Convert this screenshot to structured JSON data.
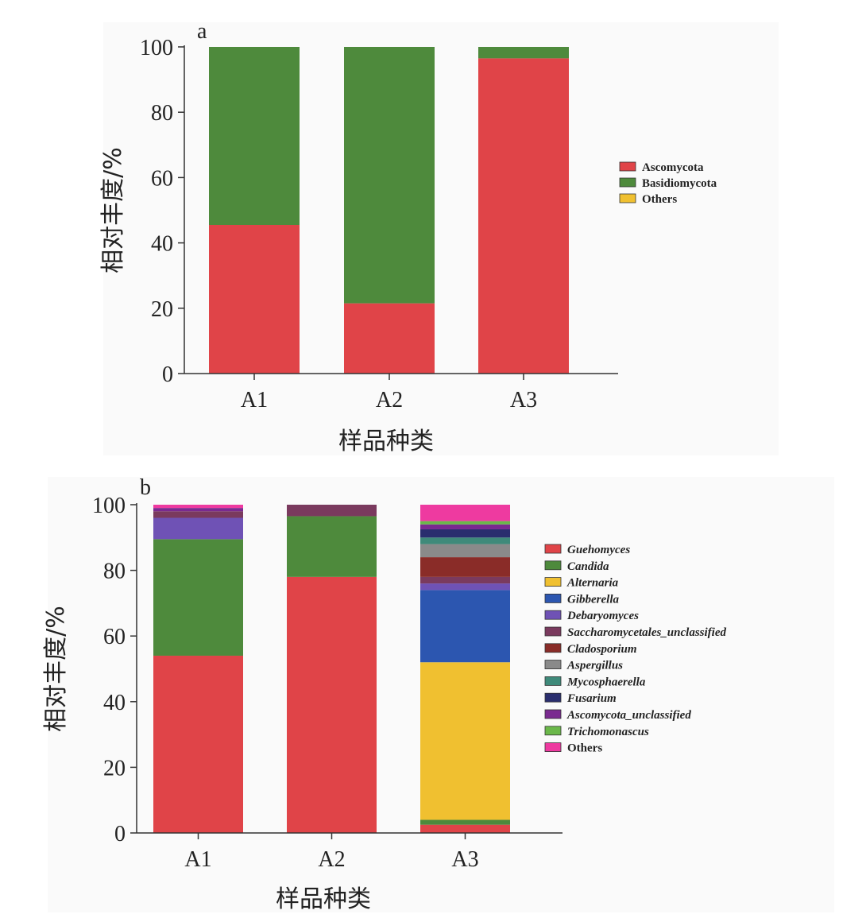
{
  "chart_data": [
    {
      "panel_label": "a",
      "type": "bar",
      "stacked": true,
      "categories": [
        "A1",
        "A2",
        "A3"
      ],
      "xlabel": "样品种类",
      "ylabel": "相对丰度/%",
      "ylim": [
        0,
        100
      ],
      "yticks": [
        0,
        20,
        40,
        60,
        80,
        100
      ],
      "series": [
        {
          "name": "Ascomycota",
          "color": "#e04448",
          "values": [
            45.5,
            21.5,
            96.5
          ]
        },
        {
          "name": "Basidiomycota",
          "color": "#4e8a3c",
          "values": [
            54.5,
            78.5,
            3.5
          ]
        },
        {
          "name": "Others",
          "color": "#f0c030",
          "values": [
            0,
            0,
            0
          ]
        }
      ],
      "legend_position": "right"
    },
    {
      "panel_label": "b",
      "type": "bar",
      "stacked": true,
      "categories": [
        "A1",
        "A2",
        "A3"
      ],
      "xlabel": "样品种类",
      "ylabel": "相对丰度/%",
      "ylim": [
        0,
        100
      ],
      "yticks": [
        0,
        20,
        40,
        60,
        80,
        100
      ],
      "series": [
        {
          "name": "Guehomyces",
          "color": "#e04448",
          "values": [
            54,
            78,
            2.5
          ]
        },
        {
          "name": "Candida",
          "color": "#4e8a3c",
          "values": [
            35.5,
            18.5,
            1.5
          ]
        },
        {
          "name": "Alternaria",
          "color": "#f0c030",
          "values": [
            0,
            0,
            48
          ]
        },
        {
          "name": "Gibberella",
          "color": "#2c56b0",
          "values": [
            0,
            0,
            22
          ]
        },
        {
          "name": "Debaryomyces",
          "color": "#6f52b5",
          "values": [
            6.5,
            0,
            2
          ]
        },
        {
          "name": "Saccharomycetales_unclassified",
          "color": "#7a3a5e",
          "values": [
            2,
            3.5,
            2
          ]
        },
        {
          "name": "Cladosporium",
          "color": "#8a2c28",
          "values": [
            0,
            0,
            6
          ]
        },
        {
          "name": "Aspergillus",
          "color": "#8a8a8a",
          "values": [
            0,
            0,
            4
          ]
        },
        {
          "name": "Mycosphaerella",
          "color": "#3f8a7a",
          "values": [
            0,
            0,
            2
          ]
        },
        {
          "name": "Fusarium",
          "color": "#2a2e6e",
          "values": [
            0,
            0,
            2.5
          ]
        },
        {
          "name": "Ascomycota_unclassified",
          "color": "#7a2a90",
          "values": [
            1,
            0,
            1.5
          ]
        },
        {
          "name": "Trichomonascus",
          "color": "#6bb84a",
          "values": [
            0,
            0,
            1
          ]
        },
        {
          "name": "Others",
          "color": "#ee3aa0",
          "values": [
            1,
            0,
            5
          ]
        }
      ],
      "legend_position": "right"
    }
  ]
}
